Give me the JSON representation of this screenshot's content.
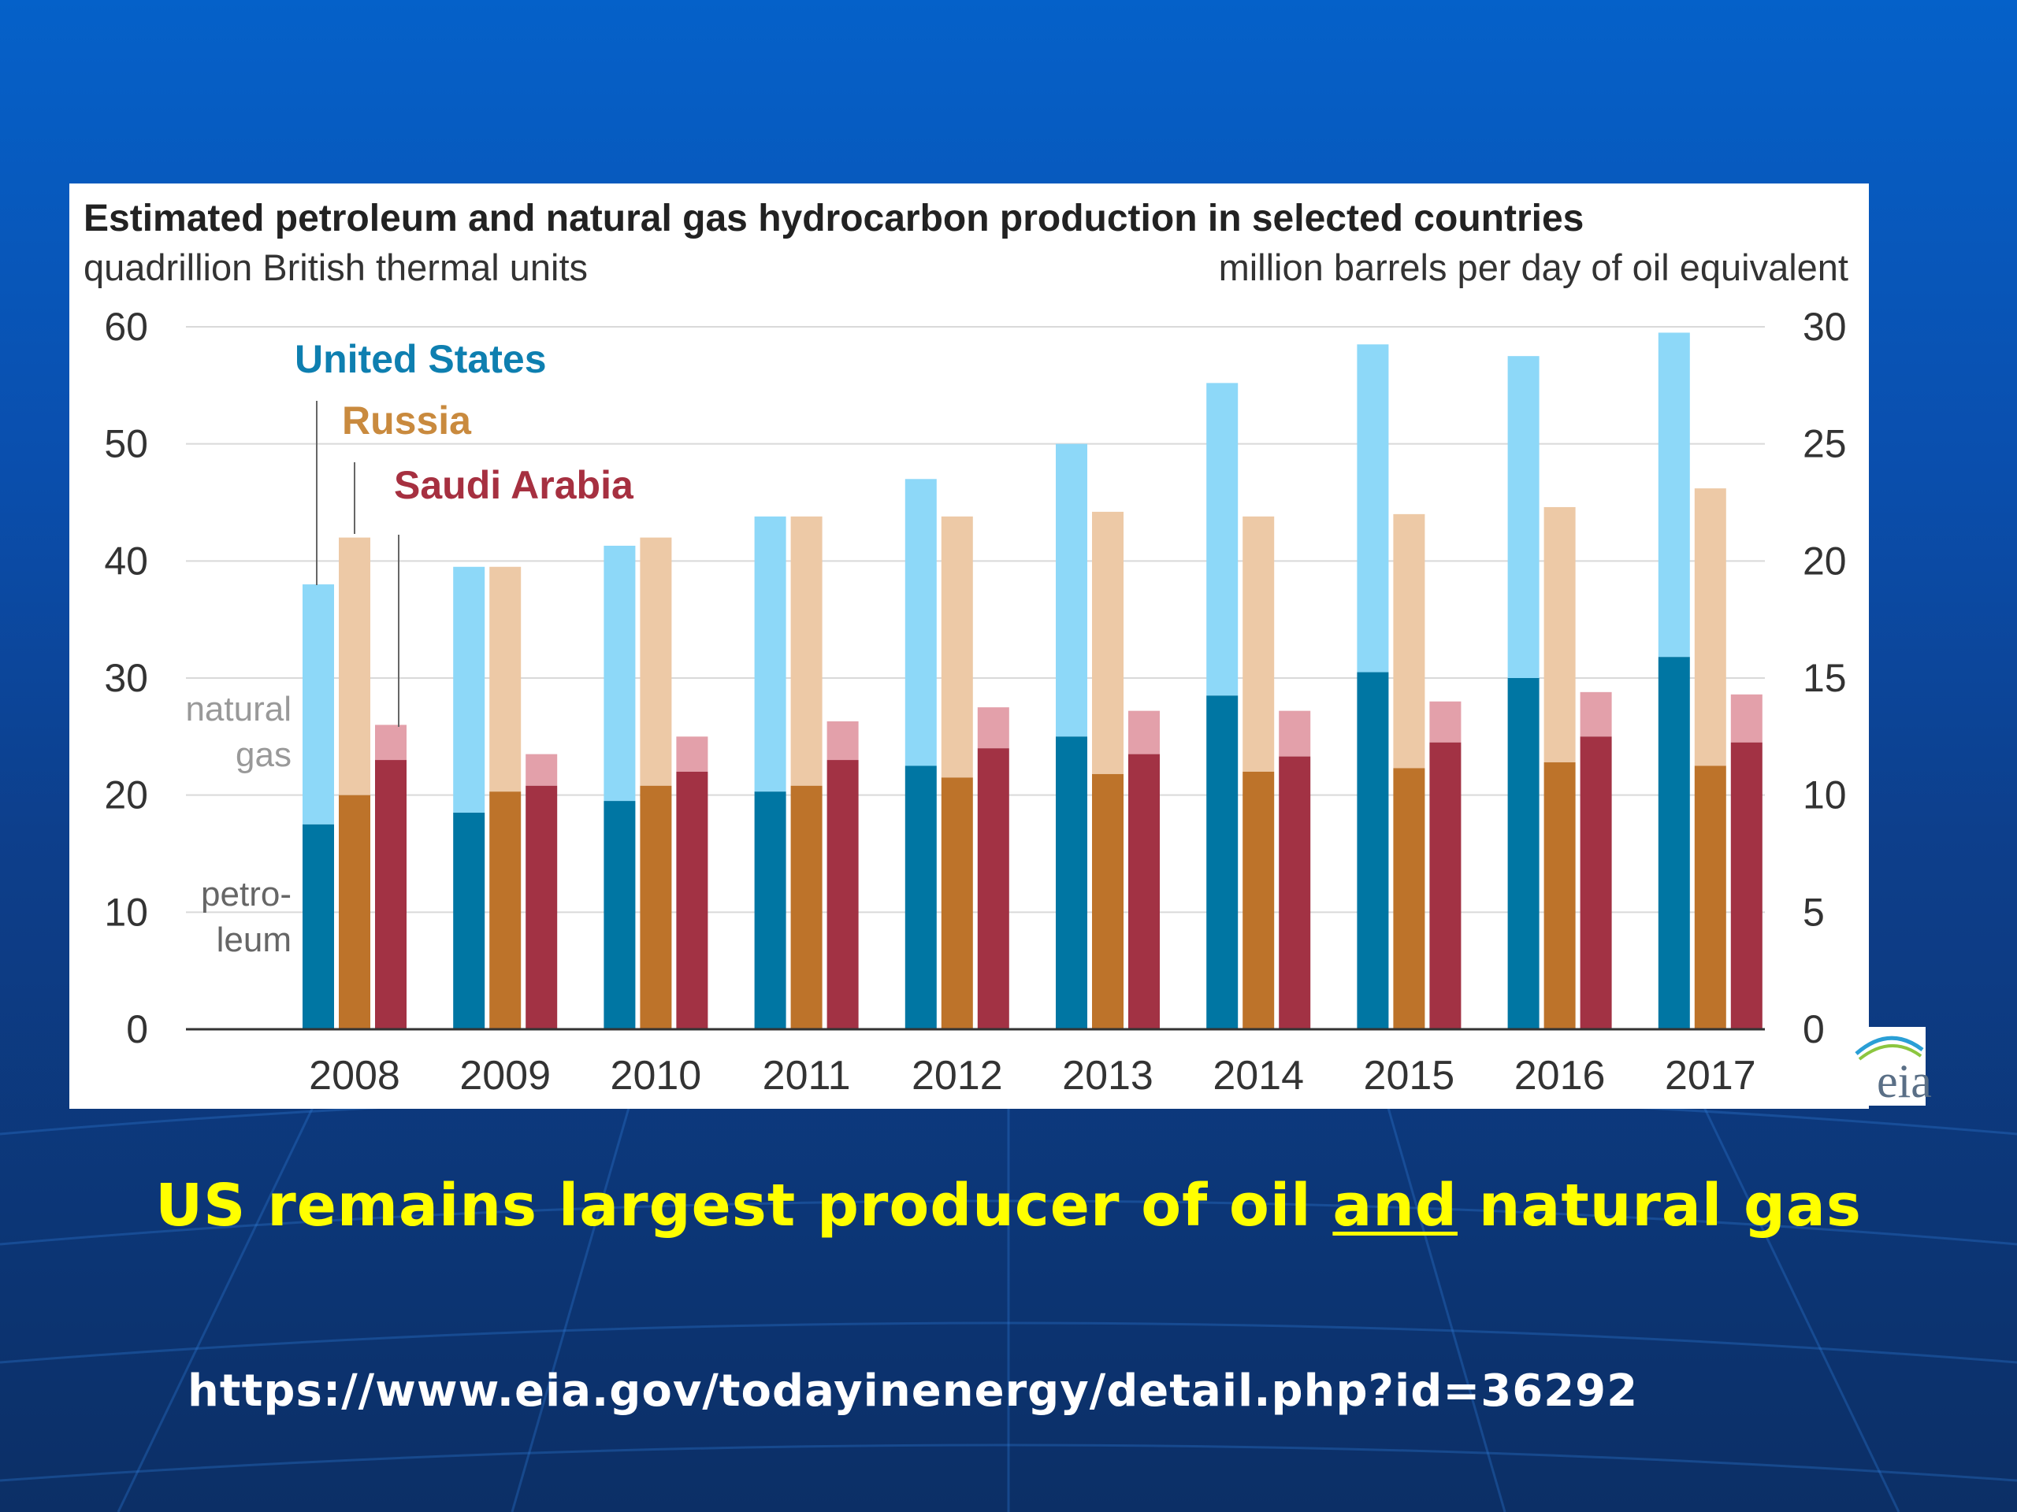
{
  "slide": {
    "caption_part1": "US remains largest producer of oil ",
    "caption_underlined": "and",
    "caption_part2": " natural gas",
    "source_url": "https://www.eia.gov/todayinenergy/detail.php?id=36292",
    "logo_text": "eia",
    "colors": {
      "caption": "#ffff00",
      "url": "#ffffff",
      "background": "#0a4fae"
    }
  },
  "chart_data": {
    "type": "bar",
    "title": "Estimated petroleum and natural gas hydrocarbon production in selected countries",
    "ylabel_left": "quadrillion British thermal units",
    "ylabel_right": "million barrels per day of oil equivalent",
    "ylim": [
      0,
      60
    ],
    "ylim_right": [
      0,
      30
    ],
    "yticks_left": [
      "60",
      "50",
      "40",
      "30",
      "20",
      "10",
      "0"
    ],
    "yticks_right": [
      "30",
      "25",
      "20",
      "15",
      "10",
      "5",
      "0"
    ],
    "grid": true,
    "stacked": true,
    "categories": [
      "2008",
      "2009",
      "2010",
      "2011",
      "2012",
      "2013",
      "2014",
      "2015",
      "2016",
      "2017"
    ],
    "component_labels": {
      "gas": [
        "natural",
        "gas"
      ],
      "petroleum": [
        "petro-",
        "leum"
      ]
    },
    "series": [
      {
        "name": "United States",
        "petroleum": [
          17.5,
          18.5,
          19.5,
          20.3,
          22.5,
          25.0,
          28.5,
          30.5,
          30.0,
          31.8
        ],
        "total": [
          38.0,
          39.5,
          41.3,
          43.8,
          47.0,
          50.0,
          55.2,
          58.5,
          57.5,
          59.5
        ],
        "colors": {
          "petroleum": "#0076a3",
          "gas": "#8dd8f8",
          "label": "#0e7fb0"
        }
      },
      {
        "name": "Russia",
        "petroleum": [
          20.0,
          20.3,
          20.8,
          20.8,
          21.5,
          21.8,
          22.0,
          22.3,
          22.8,
          22.5
        ],
        "total": [
          42.0,
          39.5,
          42.0,
          43.8,
          43.8,
          44.2,
          43.8,
          44.0,
          44.6,
          46.2
        ],
        "colors": {
          "petroleum": "#bd732a",
          "gas": "#edc9a6",
          "label": "#c98a3e"
        }
      },
      {
        "name": "Saudi Arabia",
        "petroleum": [
          23.0,
          20.8,
          22.0,
          23.0,
          24.0,
          23.5,
          23.3,
          24.5,
          25.0,
          24.5
        ],
        "total": [
          26.0,
          23.5,
          25.0,
          26.3,
          27.5,
          27.2,
          27.2,
          28.0,
          28.8,
          28.6
        ],
        "colors": {
          "petroleum": "#a23244",
          "gas": "#e3a0aa",
          "label": "#a63040"
        }
      }
    ]
  }
}
